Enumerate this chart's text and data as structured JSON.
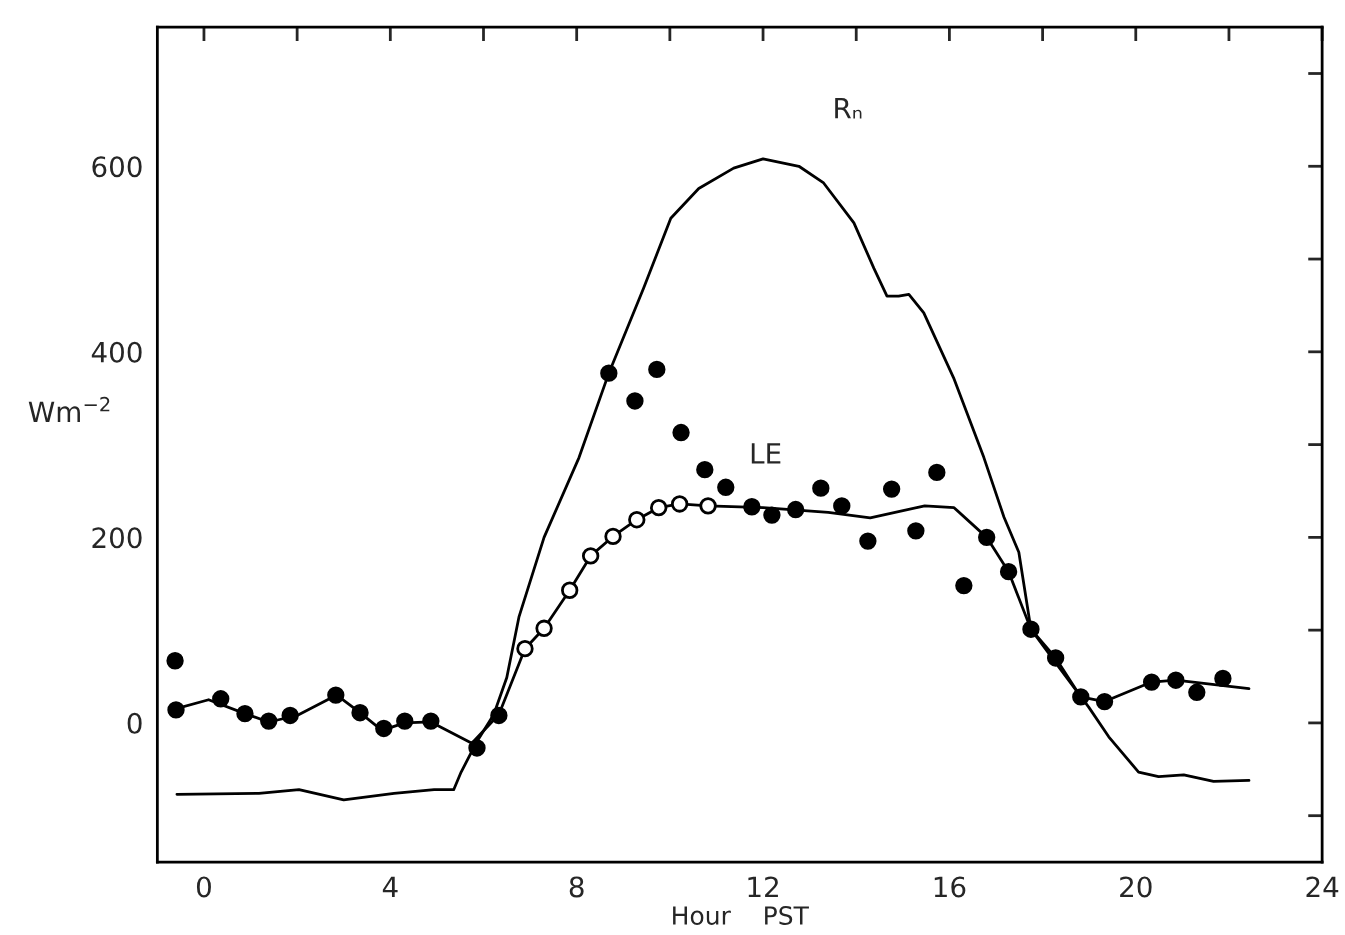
{
  "chart_data": {
    "type": "line",
    "xlabel": "Hour    PST",
    "ylabel": "Wm$^{−2}$",
    "xlim": [
      -1,
      24
    ],
    "ylim": [
      -150,
      750
    ],
    "xticks": [
      0,
      {
        "value": 2,
        "label": null
      },
      4,
      {
        "value": 6,
        "label": null
      },
      8,
      {
        "value": 10,
        "label": null
      },
      12,
      {
        "value": 14,
        "label": null
      },
      16,
      {
        "value": 18,
        "label": null
      },
      20,
      {
        "value": 22,
        "label": null
      },
      24
    ],
    "yticks": [
      {
        "value": -100,
        "label": null
      },
      0,
      {
        "value": 100,
        "label": null
      },
      200,
      {
        "value": 300,
        "label": null
      },
      400,
      {
        "value": 500,
        "label": null
      },
      600,
      {
        "value": 700,
        "label": null
      }
    ],
    "grid": false,
    "legend": false,
    "series": [
      {
        "name": "Rₙ",
        "color": "#000000",
        "line_style": "solid",
        "marker": "none",
        "x": [
          -0.58,
          1.18,
          2.04,
          3.0,
          4.08,
          4.94,
          5.36,
          5.52,
          5.86,
          6.22,
          6.5,
          6.76,
          7.3,
          8.05,
          8.69,
          9.44,
          10.02,
          10.62,
          11.37,
          12.0,
          12.77,
          13.3,
          13.95,
          14.38,
          14.66,
          14.91,
          15.13,
          15.45,
          16.09,
          16.74,
          17.17,
          17.49,
          17.75,
          18.35,
          18.99,
          19.42,
          20.06,
          20.49,
          21.03,
          21.67,
          22.43
        ],
        "values": [
          -77,
          -76,
          -72,
          -83,
          -76,
          -72,
          -72,
          -53,
          -20,
          9,
          49,
          114,
          200,
          286,
          377,
          469,
          544,
          576,
          598,
          608,
          600,
          582,
          539,
          490,
          460,
          460,
          462,
          442,
          372,
          286,
          222,
          184,
          101,
          60,
          17,
          -15,
          -53,
          -58,
          -56,
          -63,
          -62
        ]
      },
      {
        "name": "LE",
        "color": "#000000",
        "line_style": "solid",
        "marker": "none",
        "x": [
          -0.69,
          0.1,
          0.88,
          1.39,
          2.0,
          2.85,
          3.35,
          3.82,
          4.31,
          4.87,
          5.75,
          6.33,
          6.89,
          7.3,
          7.85,
          8.3,
          8.78,
          9.29,
          9.76,
          10.21,
          10.82,
          12.0,
          13.4,
          14.3,
          15.47,
          16.1,
          16.8,
          17.27,
          17.75,
          18.28,
          18.82,
          19.33,
          20.34,
          20.86,
          22.43
        ],
        "values": [
          14,
          25,
          10,
          1,
          8,
          30,
          11,
          -8,
          0,
          1,
          -22,
          9,
          80,
          102,
          143,
          180,
          201,
          219,
          232,
          236,
          234,
          232,
          227,
          221,
          234,
          232,
          200,
          163,
          101,
          70,
          28,
          23,
          44,
          46,
          37
        ]
      },
      {
        "type": "scatter",
        "color": "#000000",
        "marker": "circle",
        "x": [
          -0.62,
          -0.6,
          0.36,
          0.88,
          1.39,
          1.85,
          2.83,
          3.35,
          3.86,
          4.31,
          4.87,
          5.86,
          6.33,
          8.69,
          9.25,
          9.72,
          10.24,
          10.75,
          11.2,
          11.76,
          12.19,
          12.7,
          13.24,
          13.69,
          14.25,
          14.76,
          15.28,
          15.73,
          16.31,
          16.8,
          17.27,
          17.75,
          18.28,
          18.82,
          19.33,
          20.34,
          20.86,
          21.31,
          21.87
        ],
        "values": [
          67,
          14,
          26,
          10,
          2,
          8,
          30,
          11,
          -6,
          2,
          2,
          -27,
          8,
          377,
          347,
          381,
          313,
          273,
          254,
          233,
          224,
          230,
          253,
          234,
          196,
          252,
          207,
          270,
          148,
          200,
          163,
          101,
          70,
          28,
          23,
          44,
          46,
          33,
          48
        ]
      },
      {
        "type": "scatter",
        "color": "#ffffff",
        "marker": "circle",
        "x": [
          6.89,
          7.3,
          7.85,
          8.3,
          8.78,
          9.29,
          9.76,
          10.21,
          10.82
        ],
        "values": [
          80,
          102,
          143,
          180,
          201,
          219,
          232,
          236,
          234
        ]
      }
    ]
  }
}
